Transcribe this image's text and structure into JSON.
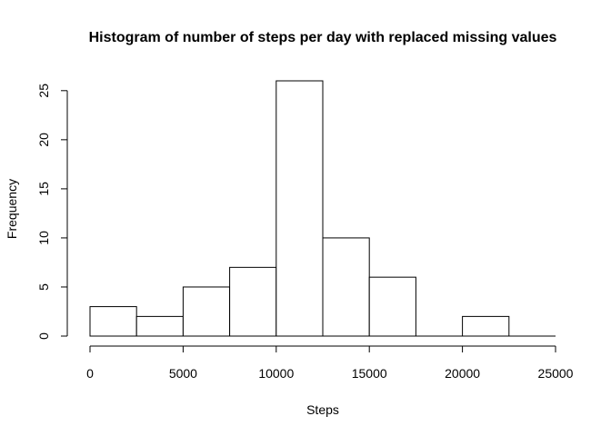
{
  "chart_data": {
    "type": "bar",
    "title": "Histogram of number of steps per day with replaced missing values",
    "xlabel": "Steps",
    "ylabel": "Frequency",
    "bins": [
      {
        "from": 0,
        "to": 2500,
        "count": 3
      },
      {
        "from": 2500,
        "to": 5000,
        "count": 2
      },
      {
        "from": 5000,
        "to": 7500,
        "count": 5
      },
      {
        "from": 7500,
        "to": 10000,
        "count": 7
      },
      {
        "from": 10000,
        "to": 12500,
        "count": 26
      },
      {
        "from": 12500,
        "to": 15000,
        "count": 10
      },
      {
        "from": 15000,
        "to": 17500,
        "count": 6
      },
      {
        "from": 17500,
        "to": 20000,
        "count": 0
      },
      {
        "from": 20000,
        "to": 22500,
        "count": 2
      },
      {
        "from": 22500,
        "to": 25000,
        "count": 0
      }
    ],
    "xlim": [
      0,
      25000
    ],
    "ylim": [
      0,
      26
    ],
    "xticks": [
      "0",
      "5000",
      "10000",
      "15000",
      "20000",
      "25000"
    ],
    "yticks": [
      "0",
      "5",
      "10",
      "15",
      "20",
      "25"
    ],
    "grid": false,
    "legend": "none",
    "colors": {
      "bar_fill": "#ffffff",
      "bar_stroke": "#000000"
    }
  }
}
